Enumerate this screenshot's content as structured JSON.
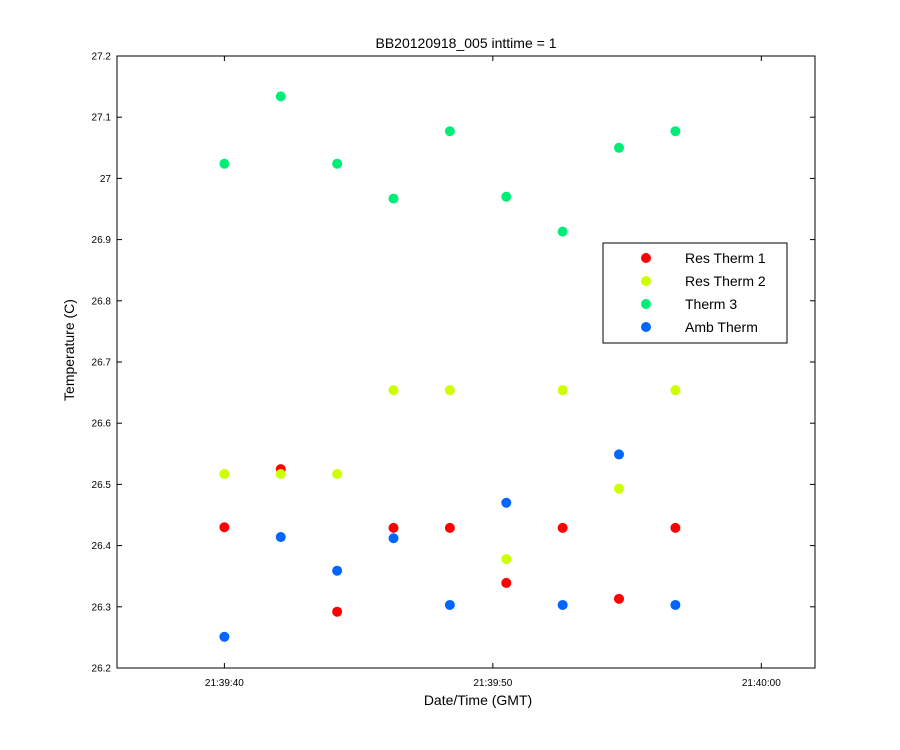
{
  "chart_data": {
    "type": "scatter",
    "title": "BB20120918_005 inttime = 1",
    "xlabel": "Date/Time (GMT)",
    "ylabel": "Temperature (C)",
    "x_unit": "seconds after 21:39:40 GMT",
    "xlim": [
      -2.0,
      11.0
    ],
    "ylim": [
      26.2,
      27.2
    ],
    "x_ticks": [
      0,
      5,
      10
    ],
    "x_tick_labels": [
      "21:39:40",
      "21:39:50",
      "21:40:00"
    ],
    "y_ticks": [
      26.2,
      26.3,
      26.4,
      26.5,
      26.6,
      26.7,
      26.8,
      26.9,
      27.0,
      27.1,
      27.2
    ],
    "y_tick_labels": [
      "26.2",
      "26.3",
      "26.4",
      "26.5",
      "26.6",
      "26.7",
      "26.8",
      "26.9",
      "27",
      "27.1",
      "27.2"
    ],
    "grid": false,
    "legend_position": "right",
    "series": [
      {
        "name": "Res Therm 1",
        "color": "#ff0000",
        "x": [
          0.0,
          1.05,
          2.1,
          3.15,
          4.2,
          5.25,
          6.3,
          7.35,
          8.4
        ],
        "y": [
          26.43,
          26.525,
          26.292,
          26.429,
          26.429,
          26.339,
          26.429,
          26.313,
          26.429
        ]
      },
      {
        "name": "Res Therm 2",
        "color": "#ccff00",
        "x": [
          0.0,
          1.05,
          2.1,
          3.15,
          4.2,
          5.25,
          6.3,
          7.35,
          8.4
        ],
        "y": [
          26.517,
          26.517,
          26.517,
          26.654,
          26.654,
          26.378,
          26.654,
          26.493,
          26.654
        ]
      },
      {
        "name": "Therm 3",
        "color": "#00ee77",
        "x": [
          0.0,
          1.05,
          2.1,
          3.15,
          4.2,
          5.25,
          6.3,
          7.35,
          8.4
        ],
        "y": [
          27.024,
          27.134,
          27.024,
          26.967,
          27.077,
          26.97,
          26.913,
          27.05,
          27.077
        ]
      },
      {
        "name": "Amb Therm",
        "color": "#0066ff",
        "x": [
          0.0,
          1.05,
          2.1,
          3.15,
          4.2,
          5.25,
          6.3,
          7.35,
          8.4
        ],
        "y": [
          26.251,
          26.414,
          26.359,
          26.412,
          26.303,
          26.47,
          26.303,
          26.549,
          26.303
        ]
      }
    ]
  }
}
